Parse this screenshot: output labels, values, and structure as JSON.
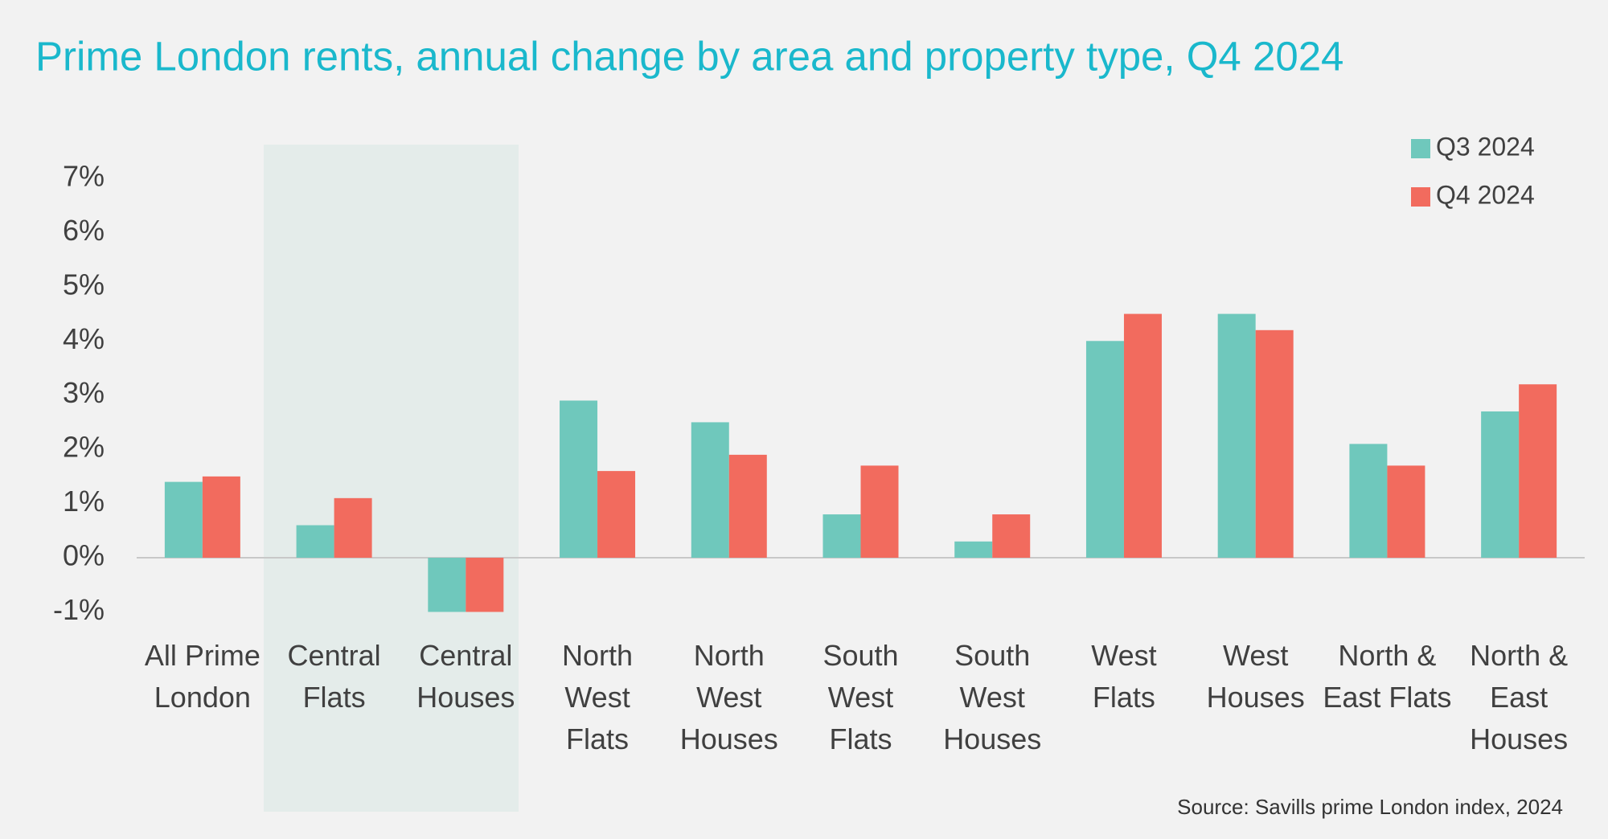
{
  "chart_data": {
    "type": "bar",
    "title": "Prime London rents, annual change by area and property type, Q4 2024",
    "source": "Source: Savills prime London index, 2024",
    "categories": [
      "All Prime London",
      "Central Flats",
      "Central Houses",
      "North West Flats",
      "North West Houses",
      "South West Flats",
      "South West Houses",
      "West Flats",
      "West Houses",
      "North & East Flats",
      "North & East Houses"
    ],
    "series": [
      {
        "name": "Q3 2024",
        "color": "#6fc8bc",
        "values": [
          1.4,
          0.6,
          -1.0,
          2.9,
          2.5,
          0.8,
          0.3,
          4.0,
          4.5,
          2.1,
          2.7
        ]
      },
      {
        "name": "Q4 2024",
        "color": "#f26b5e",
        "values": [
          1.5,
          1.1,
          -1.0,
          1.6,
          1.9,
          1.7,
          0.8,
          4.5,
          4.2,
          1.7,
          3.2
        ]
      }
    ],
    "ylim": [
      -1.5,
      7.5
    ],
    "yticks": [
      {
        "value": -1,
        "label": "-1%"
      },
      {
        "value": 0,
        "label": "0%"
      },
      {
        "value": 1,
        "label": "1%"
      },
      {
        "value": 2,
        "label": "2%"
      },
      {
        "value": 3,
        "label": "3%"
      },
      {
        "value": 4,
        "label": "4%"
      },
      {
        "value": 5,
        "label": "5%"
      },
      {
        "value": 6,
        "label": "6%"
      },
      {
        "value": 7,
        "label": "7%"
      }
    ],
    "grid": false,
    "legend": "top-right"
  }
}
